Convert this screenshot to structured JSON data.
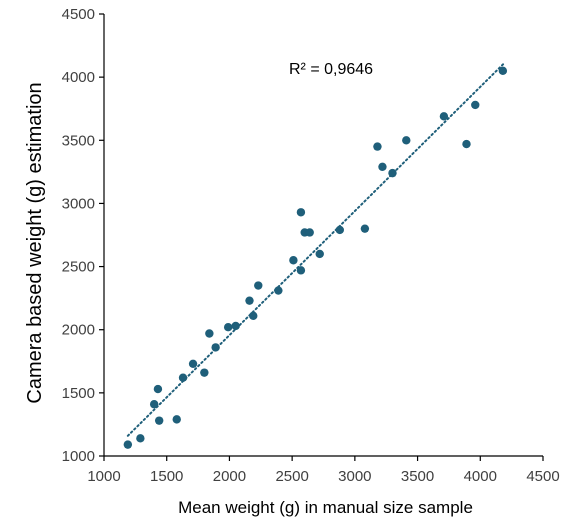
{
  "chart_data": {
    "type": "scatter",
    "title": "",
    "xlabel": "Mean weight (g) in manual size sample",
    "ylabel": "Camera based weight (g) estimation",
    "xlim": [
      1000,
      4500
    ],
    "ylim": [
      1000,
      4500
    ],
    "xticks": [
      "1000",
      "1500",
      "2000",
      "2500",
      "3000",
      "3500",
      "4000",
      "4500"
    ],
    "yticks": [
      "1000",
      "1500",
      "2000",
      "2500",
      "3000",
      "3500",
      "4000",
      "4500"
    ],
    "grid": false,
    "legend": "none",
    "annotation": "R² = 0,9646",
    "marker_color": "#1f5f7a",
    "trendline": {
      "style": "dotted",
      "color": "#1f5f7a",
      "x": [
        1190,
        4190
      ],
      "y": [
        1160,
        4110
      ]
    },
    "points": [
      {
        "x": 1190,
        "y": 1090
      },
      {
        "x": 1290,
        "y": 1140
      },
      {
        "x": 1400,
        "y": 1410
      },
      {
        "x": 1430,
        "y": 1530
      },
      {
        "x": 1440,
        "y": 1280
      },
      {
        "x": 1580,
        "y": 1290
      },
      {
        "x": 1630,
        "y": 1620
      },
      {
        "x": 1710,
        "y": 1730
      },
      {
        "x": 1800,
        "y": 1660
      },
      {
        "x": 1840,
        "y": 1970
      },
      {
        "x": 1890,
        "y": 1860
      },
      {
        "x": 1990,
        "y": 2020
      },
      {
        "x": 2050,
        "y": 2030
      },
      {
        "x": 2160,
        "y": 2230
      },
      {
        "x": 2190,
        "y": 2110
      },
      {
        "x": 2230,
        "y": 2350
      },
      {
        "x": 2390,
        "y": 2310
      },
      {
        "x": 2510,
        "y": 2550
      },
      {
        "x": 2570,
        "y": 2930
      },
      {
        "x": 2570,
        "y": 2470
      },
      {
        "x": 2600,
        "y": 2770
      },
      {
        "x": 2640,
        "y": 2770
      },
      {
        "x": 2720,
        "y": 2600
      },
      {
        "x": 2880,
        "y": 2790
      },
      {
        "x": 3080,
        "y": 2800
      },
      {
        "x": 3180,
        "y": 3450
      },
      {
        "x": 3220,
        "y": 3290
      },
      {
        "x": 3300,
        "y": 3240
      },
      {
        "x": 3410,
        "y": 3500
      },
      {
        "x": 3710,
        "y": 3690
      },
      {
        "x": 3890,
        "y": 3470
      },
      {
        "x": 3960,
        "y": 3780
      },
      {
        "x": 4180,
        "y": 4050
      }
    ]
  }
}
